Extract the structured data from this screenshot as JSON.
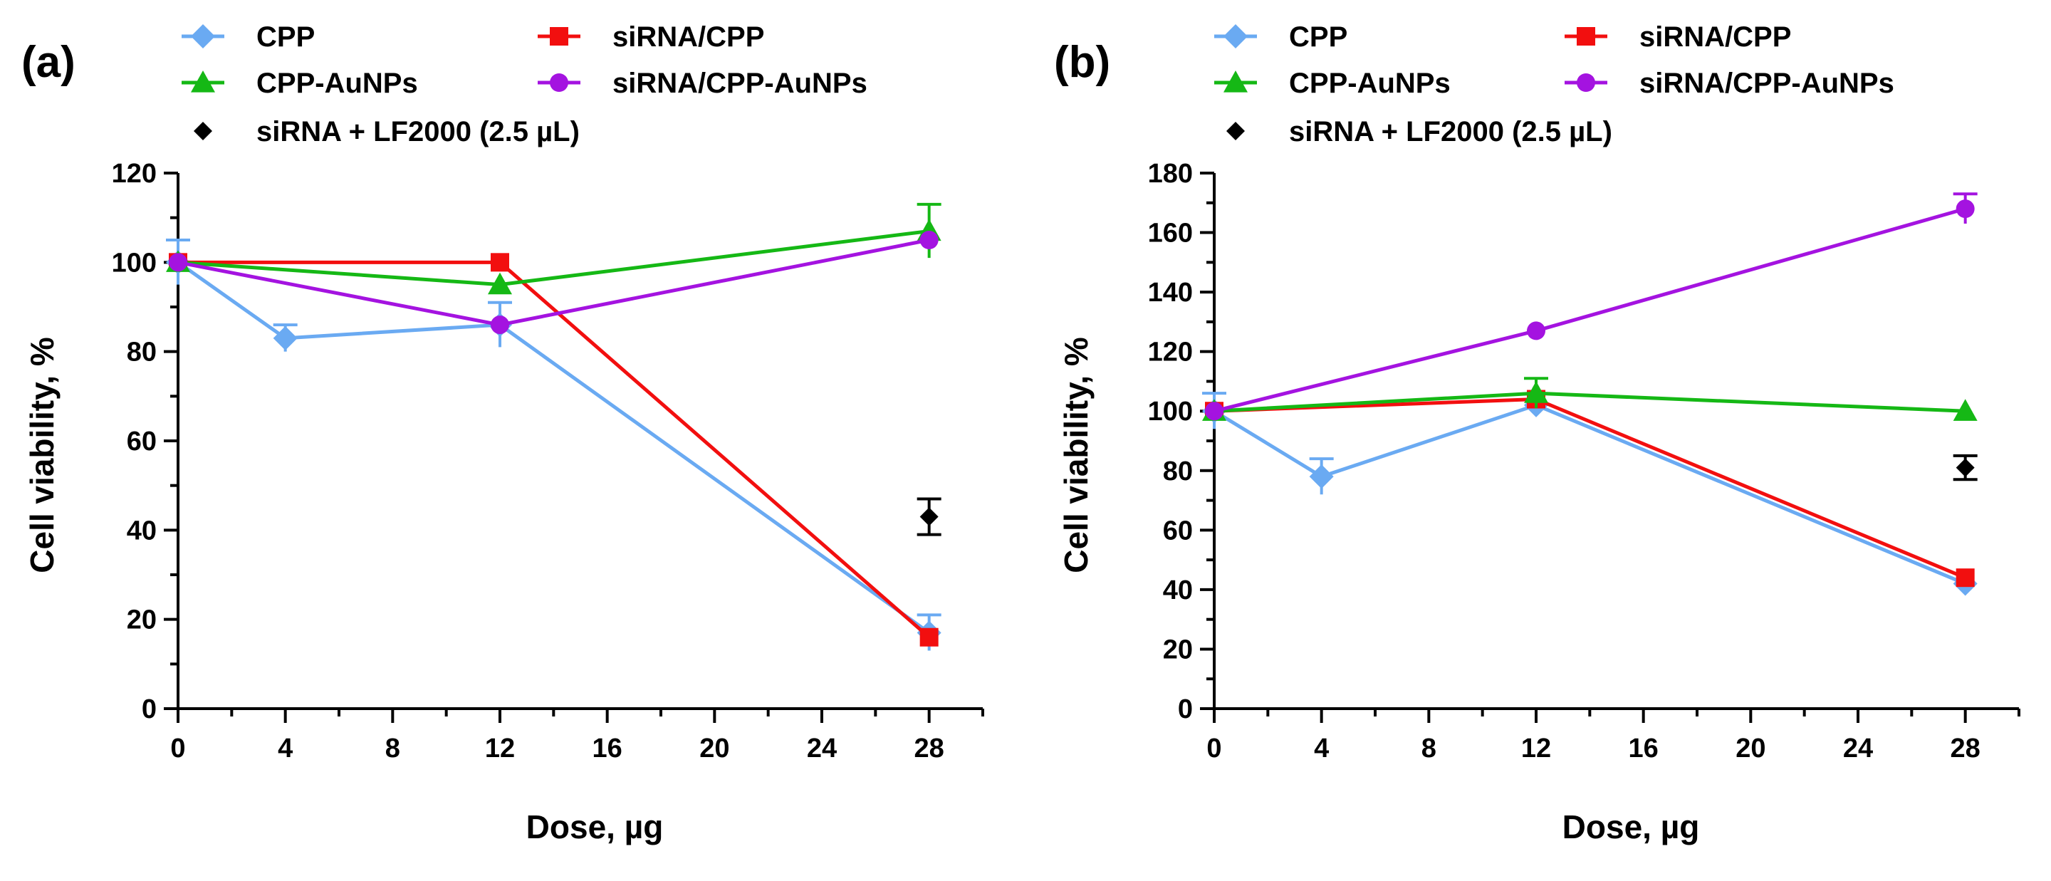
{
  "colors": {
    "CPP": "#6aaaf2",
    "siRNA/CPP": "#f20f0f",
    "CPP-AuNPs": "#15b815",
    "siRNA/CPP-AuNPs": "#a413e0",
    "siRNA + LF2000 (2.5 µL)": "#000000"
  },
  "chart_data": [
    {
      "panel": "(a)",
      "type": "line",
      "xlabel": "Dose, µg",
      "ylabel": "Cell viability, %",
      "xlim": [
        0,
        30
      ],
      "ylim": [
        0,
        120
      ],
      "xticks": [
        0,
        4,
        8,
        12,
        16,
        20,
        24,
        28
      ],
      "yticks": [
        0,
        20,
        40,
        60,
        80,
        100,
        120
      ],
      "legend": [
        "CPP",
        "siRNA/CPP",
        "CPP-AuNPs",
        "siRNA/CPP-AuNPs",
        "siRNA + LF2000 (2.5 µL)"
      ],
      "series": [
        {
          "name": "CPP",
          "marker": "diamond",
          "x": [
            0,
            4,
            12,
            28
          ],
          "values": [
            100,
            83,
            86,
            17
          ],
          "err": [
            5,
            3,
            5,
            4
          ]
        },
        {
          "name": "siRNA/CPP",
          "marker": "square",
          "x": [
            0,
            12,
            28
          ],
          "values": [
            100,
            100,
            16
          ],
          "err": [
            0,
            0,
            0
          ]
        },
        {
          "name": "CPP-AuNPs",
          "marker": "triangle",
          "x": [
            0,
            12,
            28
          ],
          "values": [
            100,
            95,
            107
          ],
          "err": [
            0,
            0,
            6
          ]
        },
        {
          "name": "siRNA/CPP-AuNPs",
          "marker": "circle",
          "x": [
            0,
            12,
            28
          ],
          "values": [
            100,
            86,
            105
          ],
          "err": [
            0,
            0,
            0
          ]
        },
        {
          "name": "siRNA + LF2000 (2.5 µL)",
          "marker": "small-diamond",
          "nolines": true,
          "x": [
            28
          ],
          "values": [
            43
          ],
          "err": [
            4
          ]
        }
      ]
    },
    {
      "panel": "(b)",
      "type": "line",
      "xlabel": "Dose, µg",
      "ylabel": "Cell viability, %",
      "xlim": [
        0,
        30
      ],
      "ylim": [
        0,
        180
      ],
      "xticks": [
        0,
        4,
        8,
        12,
        16,
        20,
        24,
        28
      ],
      "yticks": [
        0,
        20,
        40,
        60,
        80,
        100,
        120,
        140,
        160,
        180
      ],
      "legend": [
        "CPP",
        "siRNA/CPP",
        "CPP-AuNPs",
        "siRNA/CPP-AuNPs",
        "siRNA + LF2000 (2.5 µL)"
      ],
      "series": [
        {
          "name": "CPP",
          "marker": "diamond",
          "x": [
            0,
            4,
            12,
            28
          ],
          "values": [
            100,
            78,
            102,
            42
          ],
          "err": [
            6,
            6,
            0,
            0
          ]
        },
        {
          "name": "siRNA/CPP",
          "marker": "square",
          "x": [
            0,
            12,
            28
          ],
          "values": [
            100,
            104,
            44
          ],
          "err": [
            0,
            0,
            0
          ]
        },
        {
          "name": "CPP-AuNPs",
          "marker": "triangle",
          "x": [
            0,
            12,
            28
          ],
          "values": [
            100,
            106,
            100
          ],
          "err": [
            0,
            5,
            0
          ]
        },
        {
          "name": "siRNA/CPP-AuNPs",
          "marker": "circle",
          "x": [
            0,
            12,
            28
          ],
          "values": [
            100,
            127,
            168
          ],
          "err": [
            0,
            0,
            5
          ]
        },
        {
          "name": "siRNA + LF2000 (2.5 µL)",
          "marker": "small-diamond",
          "nolines": true,
          "x": [
            28
          ],
          "values": [
            81
          ],
          "err": [
            4
          ]
        }
      ]
    }
  ]
}
